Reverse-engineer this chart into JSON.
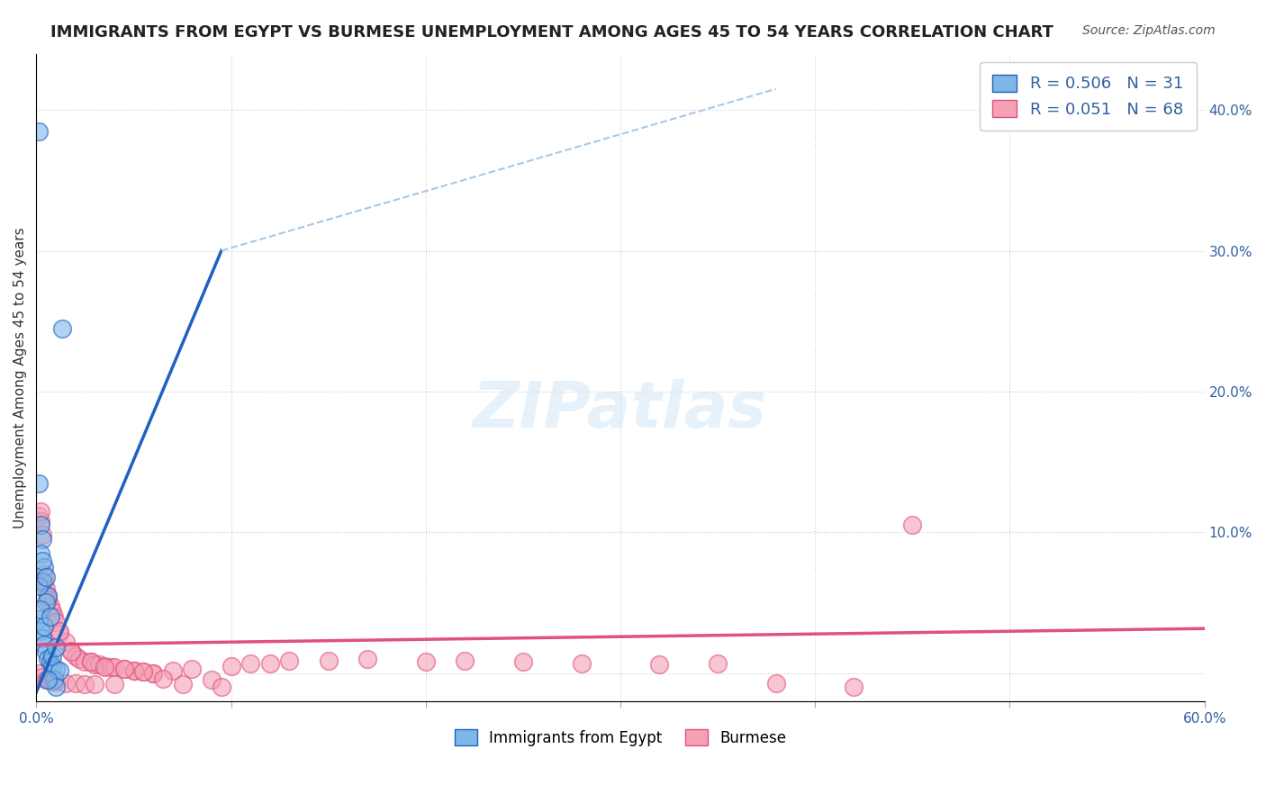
{
  "title": "IMMIGRANTS FROM EGYPT VS BURMESE UNEMPLOYMENT AMONG AGES 45 TO 54 YEARS CORRELATION CHART",
  "source": "Source: ZipAtlas.com",
  "ylabel": "Unemployment Among Ages 45 to 54 years",
  "xlim": [
    0.0,
    0.6
  ],
  "ylim": [
    -0.02,
    0.44
  ],
  "legend_egypt_R": "0.506",
  "legend_egypt_N": "31",
  "legend_burmese_R": "0.051",
  "legend_burmese_N": "68",
  "egypt_color": "#7EB6E8",
  "burmese_color": "#F4A0B5",
  "egypt_line_color": "#2060C0",
  "burmese_line_color": "#E05080",
  "trend_dashed_color": "#A8C8E8",
  "background_color": "#FFFFFF",
  "egypt_x": [
    0.001,
    0.013,
    0.001,
    0.002,
    0.003,
    0.002,
    0.004,
    0.003,
    0.006,
    0.005,
    0.001,
    0.002,
    0.003,
    0.004,
    0.005,
    0.006,
    0.007,
    0.008,
    0.01,
    0.009,
    0.001,
    0.002,
    0.004,
    0.003,
    0.005,
    0.007,
    0.008,
    0.01,
    0.012,
    0.01,
    0.006
  ],
  "egypt_y": [
    0.385,
    0.245,
    0.135,
    0.105,
    0.095,
    0.085,
    0.075,
    0.065,
    0.055,
    0.05,
    0.038,
    0.03,
    0.025,
    0.02,
    0.015,
    0.01,
    0.008,
    0.005,
    0.003,
    -0.005,
    0.062,
    0.045,
    0.033,
    0.08,
    0.068,
    0.04,
    0.012,
    0.018,
    0.002,
    -0.01,
    -0.005
  ],
  "burmese_x": [
    0.001,
    0.002,
    0.003,
    0.004,
    0.005,
    0.006,
    0.007,
    0.008,
    0.009,
    0.01,
    0.012,
    0.015,
    0.018,
    0.02,
    0.022,
    0.025,
    0.028,
    0.03,
    0.032,
    0.035,
    0.038,
    0.04,
    0.045,
    0.05,
    0.055,
    0.06,
    0.07,
    0.08,
    0.09,
    0.1,
    0.12,
    0.15,
    0.17,
    0.2,
    0.22,
    0.25,
    0.28,
    0.32,
    0.35,
    0.38,
    0.42,
    0.45,
    0.001,
    0.003,
    0.005,
    0.008,
    0.01,
    0.015,
    0.02,
    0.025,
    0.03,
    0.04,
    0.05,
    0.06,
    0.002,
    0.004,
    0.006,
    0.012,
    0.018,
    0.028,
    0.035,
    0.045,
    0.055,
    0.065,
    0.075,
    0.095,
    0.11,
    0.13
  ],
  "burmese_y": [
    0.112,
    0.108,
    0.098,
    0.065,
    0.06,
    0.055,
    0.048,
    0.044,
    0.04,
    0.036,
    0.028,
    0.022,
    0.016,
    0.012,
    0.01,
    0.008,
    0.008,
    0.006,
    0.006,
    0.005,
    0.004,
    0.004,
    0.003,
    0.002,
    0.001,
    0.0,
    0.002,
    0.003,
    -0.005,
    0.005,
    0.007,
    0.009,
    0.01,
    0.008,
    0.009,
    0.008,
    0.007,
    0.006,
    0.007,
    -0.007,
    -0.01,
    0.105,
    0.0,
    -0.003,
    -0.005,
    -0.006,
    -0.006,
    -0.007,
    -0.007,
    -0.008,
    -0.008,
    -0.008,
    0.002,
    0.0,
    0.115,
    0.07,
    0.052,
    0.03,
    0.015,
    0.008,
    0.004,
    0.003,
    0.001,
    -0.004,
    -0.008,
    -0.01,
    0.007,
    0.009
  ]
}
